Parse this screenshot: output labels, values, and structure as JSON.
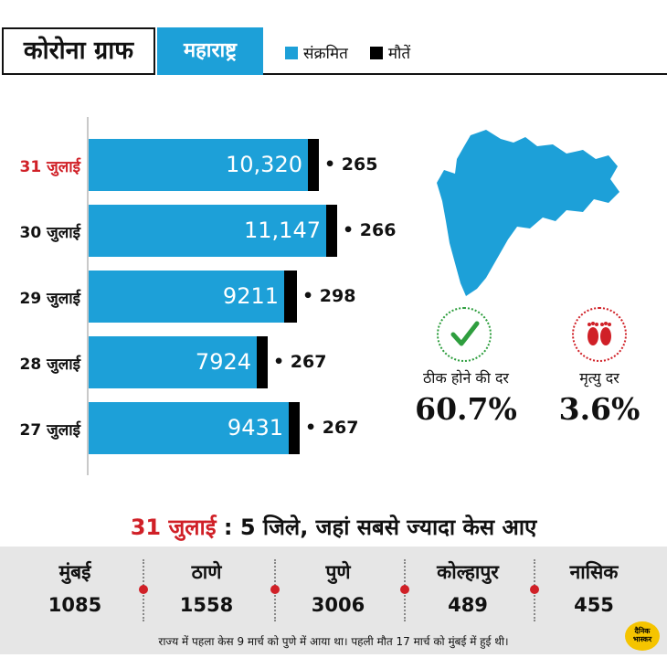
{
  "header": {
    "title": "कोरोना ग्राफ",
    "state": "महाराष्ट्र",
    "legend": [
      {
        "label": "संक्रमित",
        "color": "#1da0d8"
      },
      {
        "label": "मौतें",
        "color": "#000000"
      }
    ]
  },
  "chart_data": {
    "type": "bar",
    "orientation": "horizontal",
    "categories": [
      "31 जुलाई",
      "30 जुलाई",
      "29 जुलाई",
      "28 जुलाई",
      "27 जुलाई"
    ],
    "series": [
      {
        "name": "संक्रमित",
        "values": [
          10320,
          11147,
          9211,
          7924,
          9431
        ],
        "labels": [
          "10,320",
          "11,147",
          "9211",
          "7924",
          "9431"
        ],
        "color": "#1da0d8"
      },
      {
        "name": "मौतें",
        "values": [
          265,
          266,
          298,
          267,
          267
        ],
        "color": "#000000"
      }
    ],
    "highlight_category": "31 जुलाई"
  },
  "rates": {
    "recovery": {
      "label": "ठीक होने की दर",
      "value": "60.7%",
      "icon": "check-icon",
      "color": "#2e9e3e"
    },
    "death": {
      "label": "मृत्यु दर",
      "value": "3.6%",
      "icon": "footprints-icon",
      "color": "#d02027"
    }
  },
  "districts": {
    "heading_date": "31 जुलाई",
    "heading_text": ": 5 जिले, जहां सबसे ज्यादा केस आए",
    "items": [
      {
        "name": "मुंबई",
        "count": "1085"
      },
      {
        "name": "ठाणे",
        "count": "1558"
      },
      {
        "name": "पुणे",
        "count": "3006"
      },
      {
        "name": "कोल्हापुर",
        "count": "489"
      },
      {
        "name": "नासिक",
        "count": "455"
      }
    ],
    "footnote": "राज्य में पहला केस 9 मार्च को पुणे में आया था। पहली मौत 17 मार्च को मुंबई में हुई थी।"
  },
  "logo": {
    "line1": "दैनिक",
    "line2": "भास्कर"
  }
}
